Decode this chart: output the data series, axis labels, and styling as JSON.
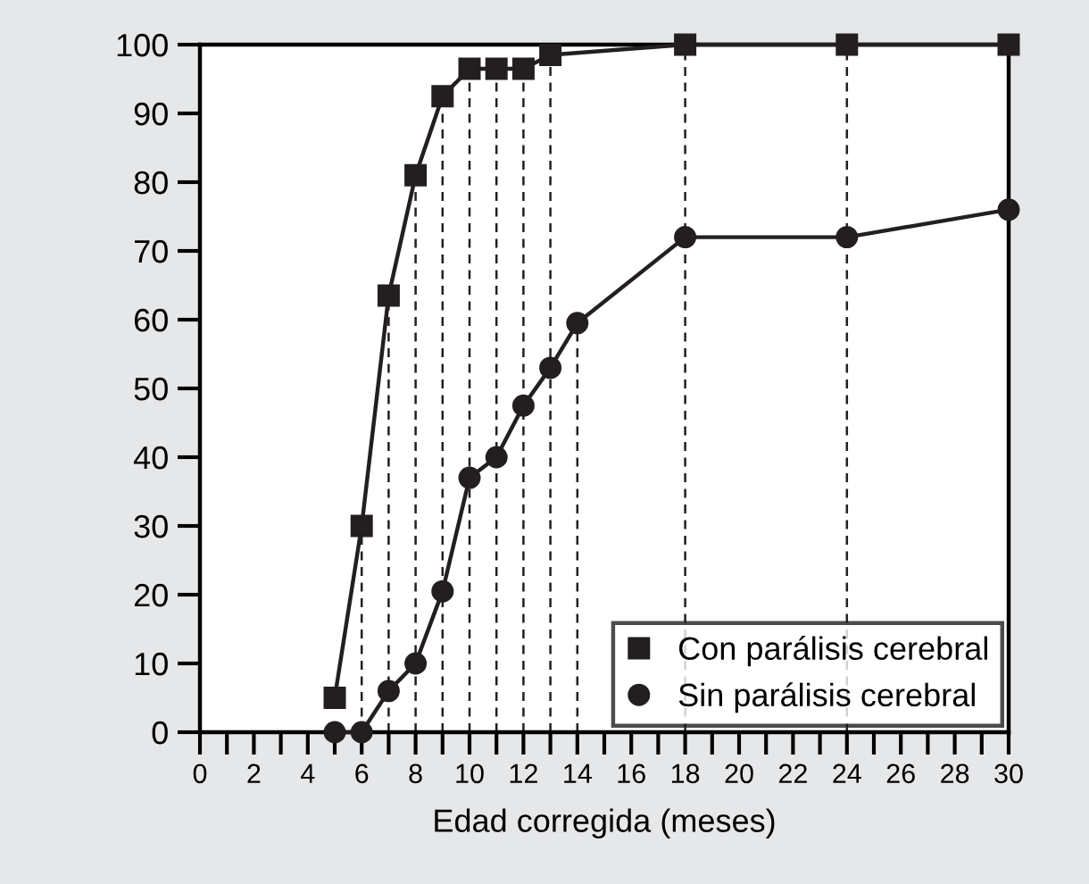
{
  "chart_data": {
    "type": "line",
    "xlabel": "Edad corregida (meses)",
    "xlim": [
      0,
      30
    ],
    "xticks": [
      0,
      2,
      4,
      6,
      8,
      10,
      12,
      14,
      16,
      18,
      20,
      22,
      24,
      26,
      28,
      30
    ],
    "ylim": [
      0,
      100
    ],
    "yticks": [
      0,
      10,
      20,
      30,
      40,
      50,
      60,
      70,
      80,
      90,
      100
    ],
    "grid": false,
    "ref_lines": [
      {
        "axis": "x",
        "value": 6,
        "line_style": "dashed"
      },
      {
        "axis": "x",
        "value": 7,
        "line_style": "dashed"
      },
      {
        "axis": "x",
        "value": 8,
        "line_style": "dashed"
      },
      {
        "axis": "x",
        "value": 9,
        "line_style": "dashed"
      },
      {
        "axis": "x",
        "value": 10,
        "line_style": "dashed"
      },
      {
        "axis": "x",
        "value": 11,
        "line_style": "dashed"
      },
      {
        "axis": "x",
        "value": 12,
        "line_style": "dashed"
      },
      {
        "axis": "x",
        "value": 13,
        "line_style": "dashed"
      },
      {
        "axis": "x",
        "value": 14,
        "line_style": "dashed"
      },
      {
        "axis": "x",
        "value": 18,
        "line_style": "dashed"
      },
      {
        "axis": "x",
        "value": 24,
        "line_style": "dashed"
      }
    ],
    "legend": "bottom right",
    "line_style": "solid",
    "series": [
      {
        "name": "Con parálisis cerebral",
        "color": "#231f20",
        "marker": "square",
        "x": [
          5,
          6,
          7,
          8,
          9,
          10,
          11,
          12,
          13,
          18,
          24,
          30
        ],
        "values": [
          5,
          30,
          63.5,
          81,
          92.5,
          96.5,
          96.5,
          96.5,
          98.5,
          100,
          100,
          100
        ]
      },
      {
        "name": "Sin parálisis cerebral",
        "color": "#231f20",
        "marker": "circle",
        "x": [
          5,
          6,
          7,
          8,
          9,
          10,
          11,
          12,
          13,
          14,
          18,
          24,
          30
        ],
        "values": [
          0,
          0,
          6,
          10,
          20.5,
          37,
          40,
          47.5,
          53,
          59.5,
          72,
          72,
          76
        ]
      }
    ]
  }
}
